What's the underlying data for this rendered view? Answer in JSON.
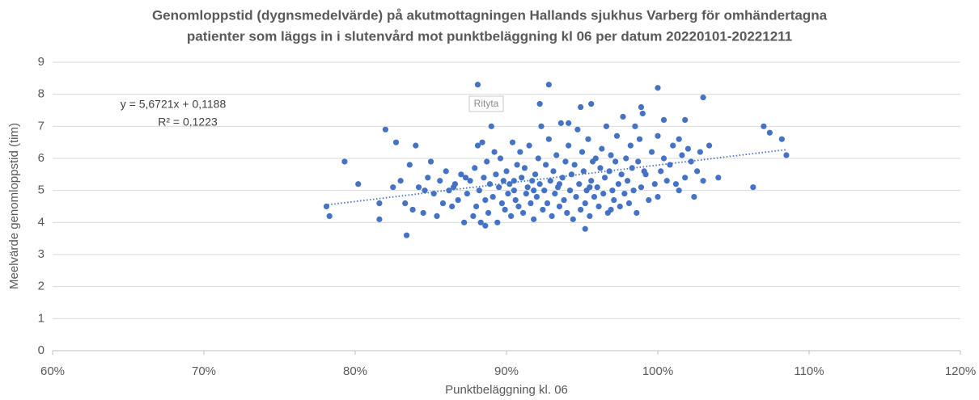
{
  "chart_data": {
    "type": "scatter",
    "title": [
      "Genomloppstid (dygnsmedelvärde) på akutmottagningen Hallands sjukhus Varberg för omhändertagna",
      "patienter som läggs in i slutenvård mot punktbeläggning kl 06 per datum 20220101-20221211"
    ],
    "x_label": "Punktbeläggning kl. 06",
    "y_label": "Meelvärde genomloppstid (tim)",
    "annotations": [
      "y = 5,6721x + 0,1188",
      "R² = 0,1223"
    ],
    "tooltip": "Rityta",
    "color": "#4472c4",
    "grid": true,
    "xlim": [
      60,
      120
    ],
    "xticks": [
      {
        "value": 60,
        "label": "60%"
      },
      {
        "value": 70,
        "label": "70%"
      },
      {
        "value": 80,
        "label": "80%"
      },
      {
        "value": 90,
        "label": "90%"
      },
      {
        "value": 100,
        "label": "100%"
      },
      {
        "value": 110,
        "label": "110%"
      },
      {
        "value": 120,
        "label": "120%"
      }
    ],
    "ylim": [
      0,
      9
    ],
    "yticks": [
      0,
      1,
      2,
      3,
      4,
      5,
      6,
      7,
      8,
      9
    ],
    "trendline": {
      "x": [
        78.2,
        108.5
      ],
      "values": [
        4.554,
        6.273
      ]
    },
    "x": [
      78.1,
      78.3,
      79.3,
      80.2,
      81.6,
      81.6,
      82.0,
      82.7,
      83.4,
      84.0,
      88.1,
      92.8,
      92.2,
      100.0,
      103.0,
      106.3,
      107.0,
      107.4,
      108.2,
      108.5,
      104.0,
      103.4,
      95.2,
      94.1,
      94.9,
      95.6,
      98.9,
      100.4,
      101.8,
      101.4,
      82.5,
      83.0,
      83.3,
      83.6,
      83.8,
      84.2,
      84.5,
      84.8,
      85.0,
      85.2,
      85.4,
      85.6,
      85.8,
      86.0,
      86.2,
      86.4,
      86.6,
      86.8,
      87.0,
      87.2,
      87.4,
      87.6,
      87.8,
      87.9,
      88.0,
      88.1,
      88.2,
      88.3,
      88.4,
      88.5,
      88.6,
      88.7,
      88.8,
      88.9,
      89.0,
      89.1,
      89.2,
      89.3,
      89.4,
      89.5,
      89.6,
      89.7,
      89.8,
      89.9,
      90.0,
      90.1,
      90.2,
      90.3,
      90.4,
      90.5,
      90.6,
      90.7,
      90.8,
      90.9,
      91.0,
      91.1,
      91.2,
      91.3,
      91.4,
      91.5,
      91.6,
      91.7,
      91.8,
      91.9,
      92.0,
      92.1,
      92.2,
      92.3,
      92.4,
      92.5,
      92.6,
      92.7,
      92.8,
      92.9,
      93.0,
      93.1,
      93.2,
      93.3,
      93.4,
      93.5,
      93.6,
      93.7,
      93.8,
      93.9,
      94.0,
      94.1,
      94.2,
      94.3,
      94.4,
      94.5,
      94.6,
      94.7,
      94.8,
      94.9,
      95.0,
      95.1,
      95.2,
      95.3,
      95.4,
      95.5,
      95.6,
      95.7,
      95.8,
      95.9,
      96.0,
      96.1,
      96.2,
      96.3,
      96.4,
      96.5,
      96.6,
      96.7,
      96.8,
      96.9,
      97.0,
      97.1,
      97.2,
      97.3,
      97.4,
      97.5,
      97.6,
      97.7,
      97.8,
      97.9,
      98.0,
      98.1,
      98.2,
      98.3,
      98.4,
      98.5,
      98.6,
      98.7,
      98.8,
      98.9,
      99.0,
      99.2,
      99.4,
      99.6,
      99.8,
      100.0,
      100.0,
      100.2,
      100.4,
      100.6,
      100.8,
      101.0,
      101.2,
      101.4,
      101.6,
      101.8,
      102.0,
      102.2,
      102.4,
      102.6,
      102.8,
      103.0,
      84.6,
      86.5,
      87.3,
      90.5,
      91.8,
      93.5,
      95.5,
      96.9,
      99.1,
      88.6
    ],
    "values": [
      4.5,
      4.2,
      5.9,
      5.2,
      4.1,
      4.6,
      6.9,
      6.5,
      3.6,
      6.4,
      8.3,
      8.3,
      7.7,
      8.2,
      7.9,
      5.1,
      7.0,
      6.8,
      6.6,
      6.1,
      5.4,
      6.4,
      3.8,
      7.1,
      7.6,
      7.7,
      7.6,
      7.2,
      7.2,
      6.6,
      5.1,
      5.3,
      4.6,
      5.8,
      4.4,
      5.1,
      4.3,
      5.4,
      5.9,
      4.9,
      4.2,
      5.3,
      4.6,
      5.6,
      5.0,
      4.5,
      5.2,
      4.7,
      5.5,
      4.0,
      4.9,
      5.3,
      4.2,
      5.7,
      4.5,
      6.4,
      5.0,
      4.0,
      6.5,
      5.4,
      4.7,
      5.9,
      4.3,
      5.2,
      7.0,
      4.8,
      6.2,
      5.5,
      4.0,
      5.1,
      6.0,
      4.6,
      5.3,
      4.4,
      5.6,
      4.9,
      5.2,
      4.2,
      6.5,
      5.0,
      4.7,
      5.8,
      4.5,
      6.2,
      5.4,
      4.3,
      5.7,
      4.9,
      5.1,
      6.4,
      4.6,
      5.3,
      4.1,
      5.5,
      4.8,
      6.0,
      5.2,
      7.0,
      4.4,
      5.0,
      5.8,
      4.6,
      6.6,
      5.3,
      4.2,
      5.6,
      4.9,
      6.1,
      5.1,
      4.5,
      7.1,
      5.4,
      4.7,
      5.9,
      4.3,
      6.4,
      5.0,
      5.5,
      4.1,
      5.8,
      4.8,
      6.9,
      5.2,
      4.4,
      6.2,
      5.6,
      4.6,
      5.0,
      6.6,
      4.2,
      5.3,
      5.9,
      4.8,
      6.0,
      5.1,
      4.5,
      5.7,
      6.3,
      4.9,
      5.4,
      7.0,
      4.3,
      5.6,
      6.1,
      5.0,
      4.7,
      5.9,
      6.7,
      5.2,
      4.5,
      5.5,
      7.3,
      4.9,
      6.0,
      5.3,
      4.6,
      6.4,
      5.7,
      5.0,
      7.0,
      4.3,
      5.9,
      6.6,
      5.1,
      7.4,
      5.5,
      4.7,
      6.2,
      5.2,
      6.7,
      4.8,
      5.6,
      6.0,
      5.3,
      5.8,
      6.4,
      5.2,
      5.0,
      6.1,
      5.4,
      6.3,
      5.9,
      4.8,
      5.6,
      6.2,
      5.3,
      5.0,
      5.1,
      5.4,
      5.3,
      5.0,
      5.2,
      5.1,
      4.4,
      5.6,
      3.9
    ]
  }
}
